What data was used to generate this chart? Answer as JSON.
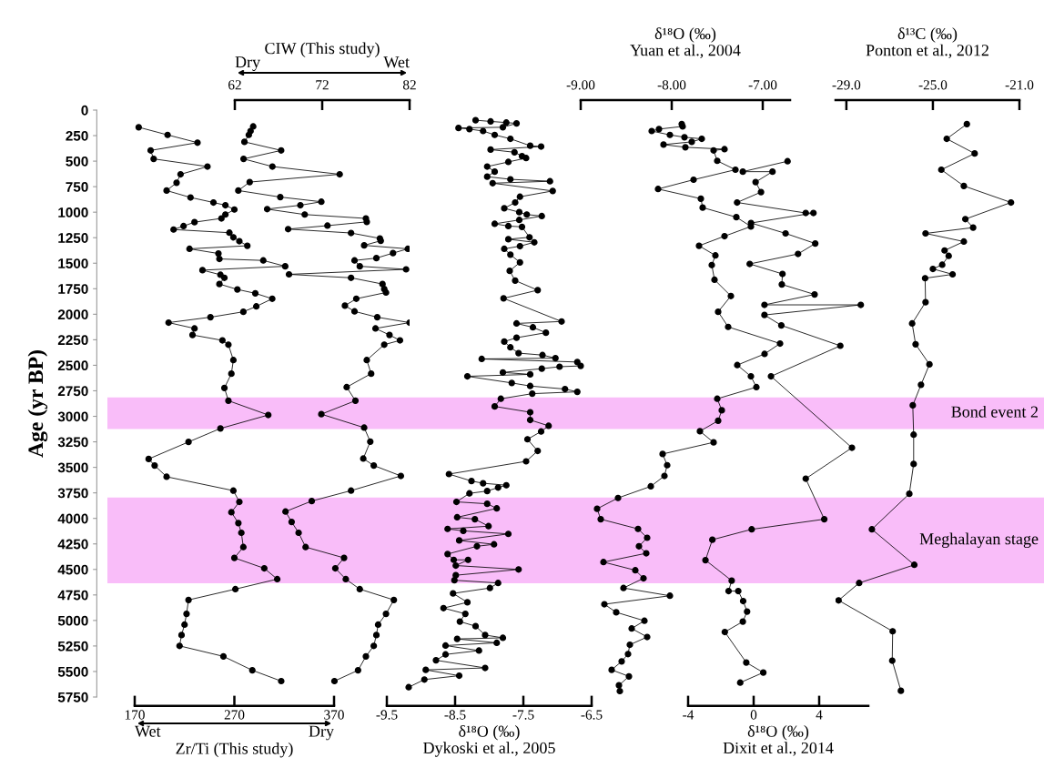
{
  "chart_data": [
    {
      "type": "line",
      "xlabel": "Zr/Ti (This study)",
      "ylabel": "Age (yr BP)",
      "annotations": [
        "Wet",
        "Dry"
      ],
      "xlim": [
        170,
        370
      ],
      "xticks": [
        170,
        270,
        370
      ],
      "ylim": [
        5750,
        0
      ],
      "yticks": [
        0,
        250,
        500,
        750,
        1000,
        1250,
        1500,
        1750,
        2000,
        2250,
        2500,
        2750,
        3000,
        3250,
        3500,
        3750,
        4000,
        4250,
        4500,
        4750,
        5000,
        5250,
        5500,
        5750
      ],
      "marker": "circle",
      "bands": [
        {
          "axis": "y",
          "from": 2815,
          "to": 3125,
          "label": "Bond event 2",
          "color": "#f9bdf9"
        },
        {
          "axis": "y",
          "from": 3795,
          "to": 4635,
          "label": "Meghalayan stage",
          "color": "#f9bdf9"
        }
      ],
      "series": [
        {
          "color": "#000000",
          "x": [
            174,
            203,
            233,
            186,
            189,
            243,
            216,
            212,
            202,
            226,
            249,
            261,
            270,
            261,
            257,
            230,
            219,
            209,
            265,
            269,
            275,
            283,
            225,
            254,
            255,
            299,
            321,
            238,
            256,
            260,
            255,
            273,
            291,
            308,
            292,
            279,
            246,
            204,
            230,
            228,
            258,
            264,
            269,
            267,
            260,
            264,
            304,
            256,
            224,
            184,
            190,
            202,
            269,
            275,
            267,
            274,
            277,
            279,
            270,
            300,
            313,
            271,
            224,
            222,
            220,
            217,
            215,
            259,
            288,
            317
          ],
          "values": [
            168,
            243,
            319,
            395,
            478,
            553,
            629,
            712,
            788,
            856,
            905,
            932,
            974,
            1023,
            1061,
            1098,
            1136,
            1170,
            1201,
            1246,
            1284,
            1329,
            1359,
            1405,
            1458,
            1473,
            1530,
            1568,
            1613,
            1643,
            1704,
            1757,
            1795,
            1848,
            1923,
            1976,
            2029,
            2082,
            2139,
            2203,
            2256,
            2298,
            2449,
            2582,
            2722,
            2847,
            2987,
            3119,
            3251,
            3418,
            3482,
            3592,
            3728,
            3838,
            3940,
            4046,
            4141,
            4281,
            4387,
            4489,
            4595,
            4693,
            4799,
            4935,
            5041,
            5143,
            5249,
            5352,
            5488,
            5594
          ]
        }
      ]
    },
    {
      "type": "line",
      "xlabel": "CIW (This study)",
      "annotations": [
        "Dry",
        "Wet"
      ],
      "xlim": [
        62,
        82
      ],
      "xticks": [
        62,
        72,
        82
      ],
      "ylim": [
        5750,
        0
      ],
      "marker": "circle",
      "tick_labels": "x",
      "series": [
        {
          "color": "#000000",
          "x": [
            64.1,
            63.8,
            63.6,
            63.1,
            67.3,
            63.0,
            66.3,
            74.0,
            63.7,
            62.4,
            67.2,
            71.9,
            69.5,
            65.7,
            70.0,
            77.0,
            77.1,
            72.6,
            68.1,
            75.3,
            78.6,
            78.7,
            76.8,
            81.8,
            80.1,
            78.2,
            75.7,
            76.3,
            81.6,
            68.2,
            75.3,
            78.9,
            79.1,
            79.3,
            75.9,
            74.6,
            75.7,
            78.3,
            82.0,
            78.1,
            79.7,
            80.9,
            79.1,
            77.1,
            77.6,
            74.8,
            75.8,
            71.9,
            76.8,
            77.5,
            76.7,
            77.9,
            81.0,
            75.3,
            70.8,
            67.8,
            68.5,
            69.3,
            70.1,
            74.5,
            73.5,
            74.7,
            76.3,
            80.2,
            79.3,
            78.4,
            78.2,
            77.9,
            77.0,
            76.1,
            73.4
          ],
          "values": [
            160,
            205,
            243,
            311,
            395,
            478,
            553,
            629,
            705,
            788,
            852,
            898,
            932,
            970,
            1023,
            1061,
            1095,
            1132,
            1166,
            1204,
            1257,
            1280,
            1325,
            1359,
            1401,
            1450,
            1473,
            1530,
            1560,
            1609,
            1643,
            1704,
            1753,
            1787,
            1848,
            1916,
            1972,
            2029,
            2082,
            2139,
            2203,
            2256,
            2298,
            2449,
            2582,
            2714,
            2847,
            2979,
            3111,
            3248,
            3414,
            3482,
            3584,
            3728,
            3830,
            3933,
            4035,
            4141,
            4281,
            4387,
            4489,
            4595,
            4693,
            4799,
            4935,
            5041,
            5143,
            5249,
            5352,
            5488,
            5594
          ]
        }
      ]
    },
    {
      "type": "line",
      "xlabel": "δ¹⁸O (‰)\nDykoski et al., 2005",
      "xlim": [
        -9.5,
        -6.5
      ],
      "xticks": [
        -9.5,
        -8.5,
        -7.5,
        -6.5
      ],
      "ylim": [
        5750,
        0
      ],
      "marker": "circle",
      "tick_labels": "x",
      "series": [
        {
          "color": "#000000",
          "x": [
            -8.2,
            -7.98,
            -7.75,
            -7.6,
            -7.8,
            -8.45,
            -8.29,
            -8.09,
            -7.92,
            -7.69,
            -7.4,
            -7.24,
            -7.98,
            -7.63,
            -7.52,
            -7.46,
            -7.72,
            -8.03,
            -7.92,
            -8.03,
            -7.69,
            -7.11,
            -7.95,
            -7.07,
            -7.55,
            -7.62,
            -7.78,
            -7.56,
            -7.45,
            -7.23,
            -7.56,
            -7.92,
            -7.72,
            -7.52,
            -7.41,
            -7.72,
            -7.34,
            -7.55,
            -7.78,
            -7.69,
            -7.55,
            -7.7,
            -7.62,
            -7.29,
            -7.79,
            -6.94,
            -7.6,
            -7.36,
            -7.17,
            -7.6,
            -7.78,
            -7.69,
            -7.57,
            -7.22,
            -7.03,
            -8.11,
            -6.71,
            -6.66,
            -6.97,
            -7.23,
            -7.8,
            -7.4,
            -8.32,
            -7.67,
            -7.4,
            -6.89,
            -6.71,
            -7.37,
            -7.83,
            -7.92,
            -7.4,
            -7.4,
            -7.13,
            -7.24,
            -7.44,
            -7.29,
            -7.46,
            -8.59,
            -8.26,
            -8.09,
            -7.75,
            -7.87,
            -8.03,
            -8.29,
            -8.48,
            -8.03,
            -7.89,
            -8.47,
            -8.21,
            -8.01,
            -8.61,
            -8.38,
            -7.72,
            -8.44,
            -7.93,
            -8.18,
            -8.61,
            -8.52,
            -8.31,
            -8.49,
            -7.57,
            -8.49,
            -8.51,
            -7.87,
            -7.99,
            -8.53,
            -8.32,
            -8.67,
            -8.35,
            -8.43,
            -8.2,
            -8.06,
            -7.8,
            -8.47,
            -7.89,
            -8.64,
            -8.15,
            -8.64,
            -8.78,
            -8.06,
            -8.93,
            -8.44,
            -8.95,
            -9.18
          ],
          "values": [
            99,
            111,
            122,
            130,
            168,
            175,
            186,
            205,
            243,
            281,
            349,
            357,
            387,
            413,
            451,
            470,
            508,
            553,
            603,
            652,
            678,
            697,
            716,
            792,
            849,
            905,
            962,
            1000,
            1023,
            1038,
            1076,
            1114,
            1136,
            1144,
            1246,
            1265,
            1295,
            1333,
            1359,
            1416,
            1492,
            1575,
            1670,
            1764,
            1844,
            2071,
            2090,
            2128,
            2181,
            2230,
            2268,
            2324,
            2381,
            2400,
            2430,
            2438,
            2468,
            2506,
            2514,
            2533,
            2570,
            2589,
            2608,
            2673,
            2703,
            2733,
            2760,
            2778,
            2828,
            2903,
            2960,
            3036,
            3093,
            3149,
            3225,
            3339,
            3441,
            3566,
            3634,
            3656,
            3675,
            3698,
            3732,
            3755,
            3838,
            3857,
            3902,
            3989,
            4008,
            4076,
            4103,
            4122,
            4152,
            4216,
            4254,
            4273,
            4349,
            4406,
            4406,
            4462,
            4500,
            4557,
            4606,
            4633,
            4682,
            4735,
            4822,
            4879,
            4935,
            5011,
            5056,
            5143,
            5170,
            5181,
            5219,
            5246,
            5295,
            5333,
            5390,
            5465,
            5484,
            5541,
            5579,
            5654
          ]
        }
      ]
    },
    {
      "type": "line",
      "xlabel": "δ¹⁸O (‰)\nYuan et al., 2004",
      "xlim": [
        -9,
        -6.7
      ],
      "xticks": [
        {
          "value": -9,
          "label": "-9.00"
        },
        {
          "value": -8,
          "label": "-8.00"
        },
        {
          "value": -7,
          "label": "-7.00"
        }
      ],
      "ylim": [
        5750,
        0
      ],
      "marker": "circle",
      "tick_labels": "x",
      "series": [
        {
          "color": "#000000",
          "x": [
            -7.89,
            -7.88,
            -8.14,
            -8.22,
            -8.02,
            -7.86,
            -7.67,
            -7.78,
            -8.09,
            -7.85,
            -7.42,
            -7.54,
            -7.5,
            -7.3,
            -7.76,
            -8.15,
            -7.68,
            -7.66,
            -7.29,
            -7.13,
            -7.42,
            -7.7,
            -7.52,
            -7.56,
            -7.53,
            -7.35,
            -7.49,
            -7.38,
            -6.81,
            -6.98,
            -7.28,
            -7.13,
            -7.07,
            -7.5,
            -7.45,
            -7.49,
            -7.69,
            -7.54,
            -8.1,
            -8.05,
            -8.08,
            -8.23,
            -8.59,
            -8.82,
            -8.78,
            -8.37,
            -8.27,
            -8.36,
            -8.28,
            -8.75,
            -8.4,
            -8.31,
            -8.53,
            -8.02,
            -8.74,
            -8.61,
            -8.3,
            -8.44,
            -8.27,
            -8.46,
            -8.48,
            -8.55,
            -8.66,
            -8.47,
            -8.58,
            -8.57
          ],
          "values": [
            137,
            160,
            186,
            205,
            243,
            266,
            281,
            311,
            338,
            364,
            383,
            395,
            497,
            584,
            682,
            773,
            868,
            955,
            1049,
            1140,
            1235,
            1329,
            1424,
            1518,
            1662,
            1821,
            1976,
            2124,
            2287,
            2389,
            2498,
            2608,
            2714,
            2828,
            2941,
            3043,
            3146,
            3255,
            3369,
            3479,
            3584,
            3686,
            3800,
            3906,
            4008,
            4103,
            4190,
            4273,
            4342,
            4428,
            4508,
            4587,
            4682,
            4758,
            4841,
            4920,
            5003,
            5079,
            5162,
            5238,
            5329,
            5401,
            5484,
            5548,
            5635,
            5692
          ]
        }
      ]
    },
    {
      "type": "line",
      "xlabel": "δ¹⁸O (‰)\nDixit et al., 2014",
      "xlim": [
        -4,
        7
      ],
      "xticks": [
        -4,
        0,
        4
      ],
      "ylim": [
        5750,
        0
      ],
      "marker": "circle",
      "tick_labels": "x",
      "series": [
        {
          "color": "#000000",
          "x": [
            2.07,
            -0.66,
            1.15,
            0.12,
            0.45,
            -1.01,
            3.18,
            3.65,
            -0.16,
            1.95,
            3.76,
            2.71,
            -0.24,
            1.76,
            1.72,
            3.72,
            0.66,
            6.54,
            0.66,
            1.69,
            5.29,
            1.06,
            6.0,
            3.18,
            4.31,
            -0.12,
            -2.52,
            -2.94,
            -1.34,
            -1.53,
            -0.94,
            -0.64,
            -0.4,
            -0.66,
            -1.76,
            -0.45,
            0.59,
            -0.82
          ],
          "values": [
            501,
            603,
            603,
            705,
            803,
            905,
            1008,
            1008,
            1106,
            1208,
            1307,
            1409,
            1507,
            1605,
            1708,
            1806,
            1908,
            1908,
            2007,
            2109,
            2309,
            2608,
            3308,
            3611,
            4008,
            4107,
            4209,
            4409,
            4610,
            4712,
            4712,
            4810,
            4913,
            5011,
            5113,
            5412,
            5510,
            5609
          ]
        }
      ]
    },
    {
      "type": "line",
      "xlabel": "δ¹³C (‰)\nPonton et al., 2012",
      "xlim": [
        -29.5,
        -21
      ],
      "xticks": [
        {
          "value": -29,
          "label": "-29.0"
        },
        {
          "value": -25,
          "label": "-25.0"
        },
        {
          "value": -21,
          "label": "-21.0"
        }
      ],
      "ylim": [
        5750,
        0
      ],
      "marker": "circle",
      "tick_labels": "x",
      "series": [
        {
          "color": "#000000",
          "x": [
            -23.43,
            -24.36,
            -23.07,
            -24.61,
            -23.57,
            -21.39,
            -23.5,
            -23.14,
            -25.34,
            -23.57,
            -24.46,
            -24.27,
            -24.57,
            -25.0,
            -24.09,
            -25.36,
            -25.34,
            -25.96,
            -25.8,
            -25.16,
            -25.55,
            -25.93,
            -25.89,
            -25.89,
            -26.09,
            -27.82,
            -25.86,
            -28.41,
            -29.36,
            -26.86,
            -26.88,
            -26.48
          ],
          "values": [
            137,
            281,
            425,
            584,
            743,
            905,
            1068,
            1151,
            1208,
            1288,
            1375,
            1428,
            1515,
            1556,
            1609,
            1647,
            1882,
            2090,
            2294,
            2491,
            2691,
            2892,
            3180,
            3467,
            3759,
            4107,
            4455,
            4633,
            4803,
            5106,
            5394,
            5689
          ]
        }
      ]
    }
  ]
}
